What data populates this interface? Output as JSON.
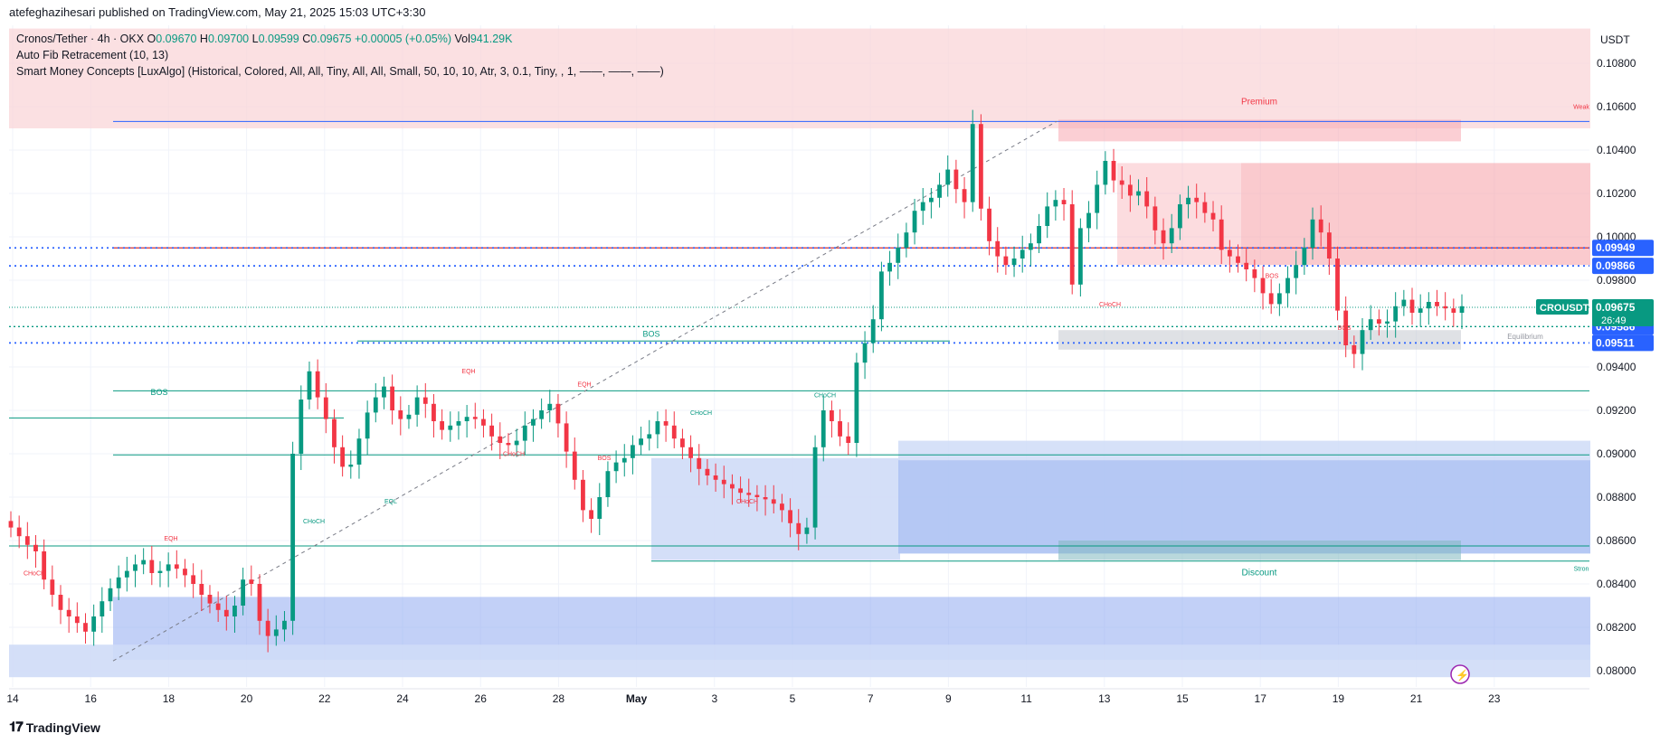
{
  "header": {
    "published_by": "atefeghazihesari published on TradingView.com, May 21, 2025 15:03 UTC+3:30"
  },
  "legend": {
    "symbol": "Cronos/Tether · 4h · OKX",
    "o_label": "O",
    "o_value": "0.09670",
    "h_label": "H",
    "h_value": "0.09700",
    "l_label": "L",
    "l_value": "0.09599",
    "c_label": "C",
    "c_value": "0.09675",
    "change": "+0.00005 (+0.05%)",
    "vol_label": "Vol",
    "vol_value": "941.29K",
    "indicator1": "Auto Fib Retracement (10, 13)",
    "indicator2": "Smart Money Concepts [LuxAlgo] (Historical, Colored, All, All, Tiny, All, All, Small, 50, 10, 10, Atr, 3, 0.1, Tiny, , 1, ——, ——, ——)"
  },
  "chart_data": {
    "type": "candlestick",
    "title": "Cronos/Tether · 4h · OKX",
    "currency": "USDT",
    "ylim": [
      0.0795,
      0.1097
    ],
    "y_ticks": [
      "0.10800",
      "0.10600",
      "0.10400",
      "0.10200",
      "0.10000",
      "0.09800",
      "0.09400",
      "0.09200",
      "0.09000",
      "0.08800",
      "0.08600",
      "0.08400",
      "0.08200",
      "0.08000"
    ],
    "x_ticks": [
      "14",
      "16",
      "18",
      "20",
      "22",
      "24",
      "26",
      "28",
      "May",
      "3",
      "5",
      "7",
      "9",
      "11",
      "13",
      "15",
      "17",
      "19",
      "21",
      "23"
    ],
    "close_series": [
      0.0866,
      0.0862,
      0.0858,
      0.0855,
      0.0842,
      0.0835,
      0.0828,
      0.0825,
      0.0822,
      0.0818,
      0.0825,
      0.0832,
      0.0838,
      0.0843,
      0.0846,
      0.0849,
      0.0851,
      0.0845,
      0.0846,
      0.0849,
      0.0847,
      0.0844,
      0.084,
      0.0835,
      0.0831,
      0.0828,
      0.0825,
      0.083,
      0.0842,
      0.084,
      0.0823,
      0.0816,
      0.0819,
      0.0823,
      0.09,
      0.0925,
      0.0938,
      0.0926,
      0.0916,
      0.0903,
      0.0894,
      0.0895,
      0.0907,
      0.0919,
      0.0926,
      0.0931,
      0.092,
      0.0916,
      0.0918,
      0.0926,
      0.0923,
      0.0915,
      0.0911,
      0.0913,
      0.0915,
      0.0917,
      0.0916,
      0.0913,
      0.0908,
      0.0905,
      0.0904,
      0.0906,
      0.0913,
      0.0916,
      0.092,
      0.0923,
      0.0914,
      0.0901,
      0.0888,
      0.0874,
      0.087,
      0.088,
      0.0892,
      0.0896,
      0.0898,
      0.0904,
      0.0907,
      0.0909,
      0.0915,
      0.0913,
      0.0907,
      0.0903,
      0.0898,
      0.0893,
      0.089,
      0.0888,
      0.0886,
      0.0884,
      0.0882,
      0.0881,
      0.088,
      0.0879,
      0.0877,
      0.0874,
      0.0868,
      0.0863,
      0.0866,
      0.0903,
      0.092,
      0.0915,
      0.0908,
      0.0905,
      0.0942,
      0.0951,
      0.0962,
      0.0984,
      0.0988,
      0.0995,
      0.1002,
      0.1012,
      0.1016,
      0.1018,
      0.1024,
      0.1031,
      0.1022,
      0.1016,
      0.1052,
      0.1013,
      0.0998,
      0.0991,
      0.0987,
      0.099,
      0.0994,
      0.0997,
      0.1005,
      0.1014,
      0.1017,
      0.1015,
      0.0978,
      0.1004,
      0.1011,
      0.1024,
      0.1035,
      0.1026,
      0.1024,
      0.1019,
      0.1021,
      0.1014,
      0.1003,
      0.0997,
      0.1004,
      0.1015,
      0.1018,
      0.1016,
      0.1011,
      0.1008,
      0.0994,
      0.0991,
      0.0988,
      0.0985,
      0.0981,
      0.0974,
      0.0969,
      0.0974,
      0.0981,
      0.0987,
      0.0995,
      0.1008,
      0.1002,
      0.099,
      0.0966,
      0.095,
      0.0946,
      0.0957,
      0.0962,
      0.096,
      0.0961,
      0.0968,
      0.0971,
      0.0965,
      0.0967,
      0.097,
      0.0968,
      0.0967,
      0.0965,
      0.0968
    ]
  },
  "price_labels": {
    "fib_top": "0.09949",
    "fib_mid": "0.09866",
    "current_name": "CROUSDT",
    "current_price": "0.09675",
    "countdown": "26:49",
    "level_a": "0.09586",
    "level_b": "0.09511"
  },
  "annotations": {
    "premium": "Premium",
    "discount": "Discount",
    "equilibrium": "Equilibrium",
    "weak": "Weak",
    "strong": "Stron",
    "bos": "BOS",
    "choch": "CHoCH",
    "eqh": "EQH",
    "eql": "EQL"
  },
  "colors": {
    "up": "#089981",
    "down": "#f23645",
    "premium_zone": "#f9d5d8",
    "discount_zone": "#cfdcf7",
    "fib_blue": "#2962ff",
    "fib_red": "#d32f2f",
    "teal": "#089981"
  },
  "footer": {
    "brand": "TradingView"
  }
}
